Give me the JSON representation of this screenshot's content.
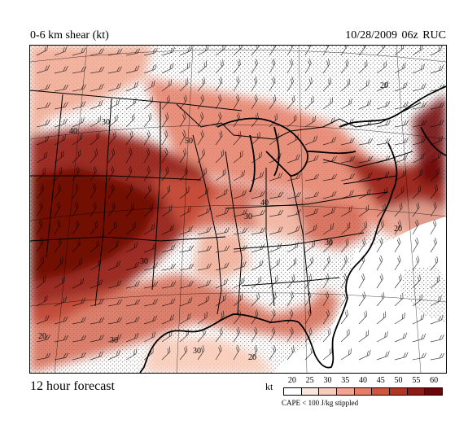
{
  "header": {
    "title": "0-6 km shear (kt)",
    "run_info": "10/28/2009  06z  RUC"
  },
  "footer": {
    "forecast_label": "12 hour forecast"
  },
  "legend": {
    "unit": "kt",
    "levels": [
      "20",
      "25",
      "30",
      "35",
      "40",
      "45",
      "50",
      "55",
      "60"
    ],
    "colors": [
      "#ffffff",
      "#fde6dc",
      "#f9cbb8",
      "#f1a78f",
      "#e57e66",
      "#d0553f",
      "#b43425",
      "#921a12",
      "#6b0706"
    ],
    "note": "CAPE < 100 J/kg stippled"
  },
  "map": {
    "contour_labels": [
      "20",
      "40",
      "30",
      "50",
      "40",
      "30",
      "20",
      "30",
      "30",
      "30",
      "30",
      "20",
      "20"
    ],
    "stipple_color": "#555555",
    "border_color": "#000000"
  }
}
